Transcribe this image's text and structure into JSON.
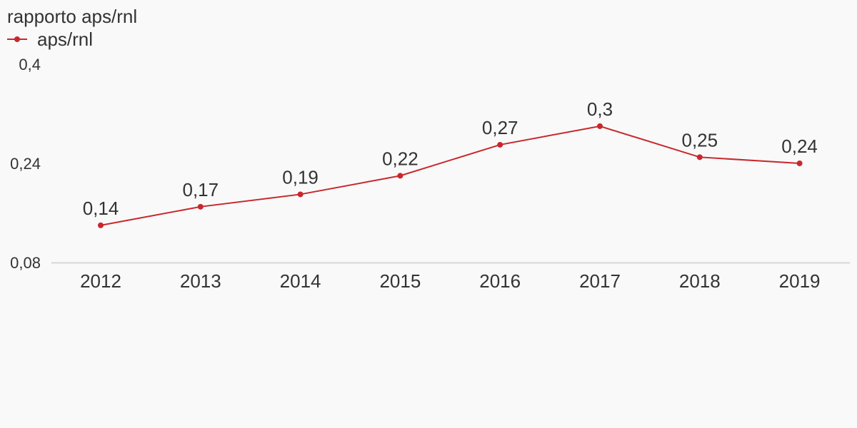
{
  "chart_data": {
    "type": "line",
    "title": "rapporto aps/rnl",
    "categories": [
      "2012",
      "2013",
      "2014",
      "2015",
      "2016",
      "2017",
      "2018",
      "2019"
    ],
    "series": [
      {
        "name": "aps/rnl",
        "values": [
          0.14,
          0.17,
          0.19,
          0.22,
          0.27,
          0.3,
          0.25,
          0.24
        ],
        "labels": [
          "0,14",
          "0,17",
          "0,19",
          "0,22",
          "0,27",
          "0,3",
          "0,25",
          "0,24"
        ],
        "color": "#c8282d"
      }
    ],
    "y_ticks": [
      {
        "value": 0.4,
        "label": "0,4"
      },
      {
        "value": 0.24,
        "label": "0,24"
      },
      {
        "value": 0.08,
        "label": "0,08"
      }
    ],
    "ylim": [
      0.08,
      0.4
    ],
    "xlabel": "",
    "ylabel": "",
    "grid": false,
    "legend": "top-left"
  },
  "colors": {
    "series": "#c8282d",
    "axis": "#d6d6d6",
    "text": "#333333",
    "background": "#f9f9f9"
  }
}
